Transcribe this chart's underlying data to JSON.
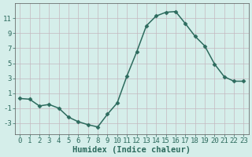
{
  "x": [
    0,
    1,
    2,
    3,
    4,
    5,
    6,
    7,
    8,
    9,
    10,
    11,
    12,
    13,
    14,
    15,
    16,
    17,
    18,
    19,
    20,
    21,
    22,
    23
  ],
  "y": [
    0.3,
    0.2,
    -0.7,
    -0.5,
    -1.0,
    -2.2,
    -2.8,
    -3.2,
    -3.5,
    -1.8,
    -0.3,
    3.3,
    6.5,
    10.0,
    11.3,
    11.8,
    11.9,
    10.3,
    8.6,
    7.3,
    4.9,
    3.2,
    2.6,
    2.6
  ],
  "line_color": "#2d6b5e",
  "marker": "D",
  "marker_size": 2.5,
  "bg_color": "#d5eeea",
  "grid_color": "#c4b8c0",
  "xlabel": "Humidex (Indice chaleur)",
  "yticks": [
    -3,
    -1,
    1,
    3,
    5,
    7,
    9,
    11
  ],
  "xticks": [
    0,
    1,
    2,
    3,
    4,
    5,
    6,
    7,
    8,
    9,
    10,
    11,
    12,
    13,
    14,
    15,
    16,
    17,
    18,
    19,
    20,
    21,
    22,
    23
  ],
  "xlim": [
    -0.5,
    23.5
  ],
  "ylim": [
    -4.5,
    13.0
  ],
  "font_color": "#2d6b5e",
  "axis_color": "#555555",
  "xlabel_fontsize": 7.5,
  "tick_fontsize": 6.5,
  "linewidth": 1.1
}
